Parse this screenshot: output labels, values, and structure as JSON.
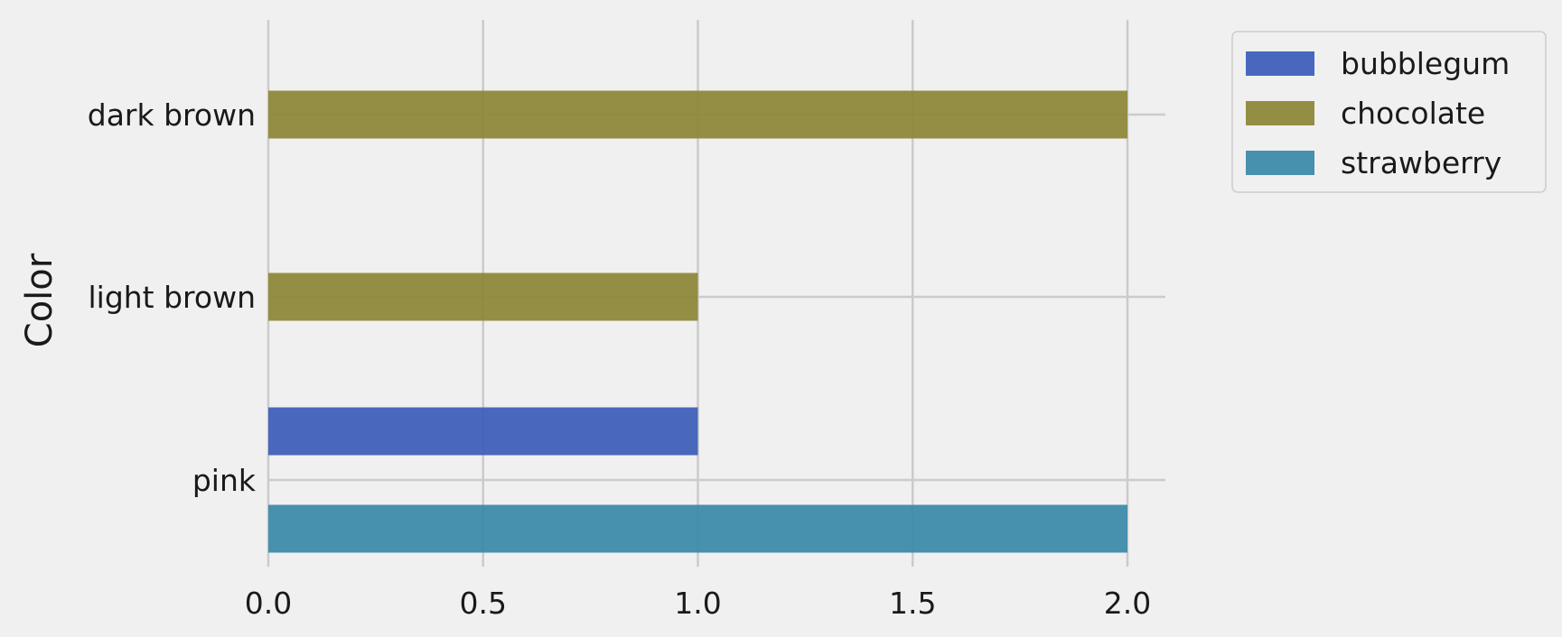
{
  "chart_data": {
    "type": "bar",
    "orientation": "horizontal",
    "title": "",
    "xlabel": "",
    "ylabel": "Color",
    "categories": [
      "pink",
      "light brown",
      "dark brown"
    ],
    "series": [
      {
        "name": "bubblegum",
        "color": "#3b5cb8",
        "values": [
          1,
          0,
          0
        ]
      },
      {
        "name": "chocolate",
        "color": "#8b8534",
        "values": [
          0,
          1,
          2
        ]
      },
      {
        "name": "strawberry",
        "color": "#3888a8",
        "values": [
          2,
          0,
          0
        ]
      }
    ],
    "xlim": [
      0,
      2.1
    ],
    "xticks": [
      0,
      0.5,
      1,
      1.5,
      2
    ],
    "xtick_labels": [
      "0.0",
      "0.5",
      "1.0",
      "1.5",
      "2.0"
    ],
    "grid": true,
    "legend_position": "outside-top-right",
    "background": "#f0f0f0"
  }
}
